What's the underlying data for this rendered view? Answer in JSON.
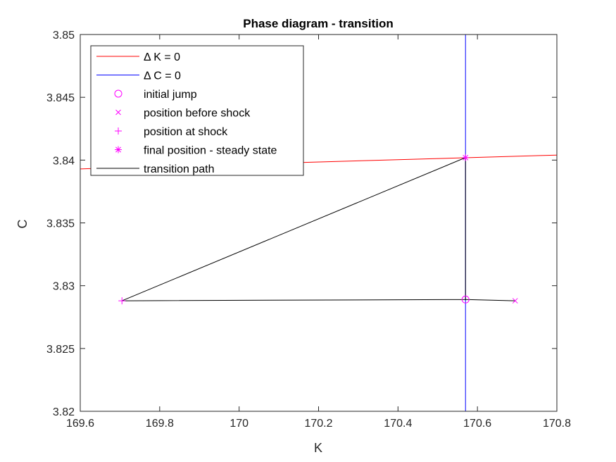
{
  "chart_data": {
    "type": "line",
    "title": "Phase diagram - transition",
    "xlabel": "K",
    "ylabel": "C",
    "xlim": [
      169.6,
      170.8
    ],
    "ylim": [
      3.82,
      3.85
    ],
    "xticks": [
      169.6,
      169.8,
      170,
      170.2,
      170.4,
      170.6,
      170.8
    ],
    "xtick_labels": [
      "169.6",
      "169.8",
      "170",
      "170.2",
      "170.4",
      "170.6",
      "170.8"
    ],
    "yticks": [
      3.82,
      3.825,
      3.83,
      3.835,
      3.84,
      3.845,
      3.85
    ],
    "ytick_labels": [
      "3.82",
      "3.825",
      "3.83",
      "3.835",
      "3.84",
      "3.845",
      "3.85"
    ],
    "grid": false,
    "legend_position": "top-left",
    "series": [
      {
        "name": "Δ K = 0",
        "kind": "line",
        "color": "#ff0000",
        "x": [
          169.6,
          170.8
        ],
        "y": [
          3.8393,
          3.8404
        ]
      },
      {
        "name": "Δ C = 0",
        "kind": "line",
        "color": "#0000ff",
        "x": [
          170.57,
          170.57
        ],
        "y": [
          3.82,
          3.85
        ]
      },
      {
        "name": "initial jump",
        "kind": "marker",
        "marker": "circle",
        "color": "#ff00ff",
        "x": [
          170.57
        ],
        "y": [
          3.8289
        ]
      },
      {
        "name": "position before shock",
        "kind": "marker",
        "marker": "x",
        "color": "#ff00ff",
        "x": [
          170.695
        ],
        "y": [
          3.8288
        ]
      },
      {
        "name": "position at shock",
        "kind": "marker",
        "marker": "plus",
        "color": "#ff00ff",
        "x": [
          169.705
        ],
        "y": [
          3.8288
        ]
      },
      {
        "name": "final position - steady state",
        "kind": "marker",
        "marker": "asterisk",
        "color": "#ff00ff",
        "x": [
          170.57
        ],
        "y": [
          3.8402
        ]
      },
      {
        "name": "transition path",
        "kind": "line",
        "color": "#000000",
        "x": [
          170.695,
          170.57,
          169.705,
          170.57,
          170.57
        ],
        "y": [
          3.8288,
          3.8289,
          3.8288,
          3.8402,
          3.8289
        ]
      }
    ]
  }
}
